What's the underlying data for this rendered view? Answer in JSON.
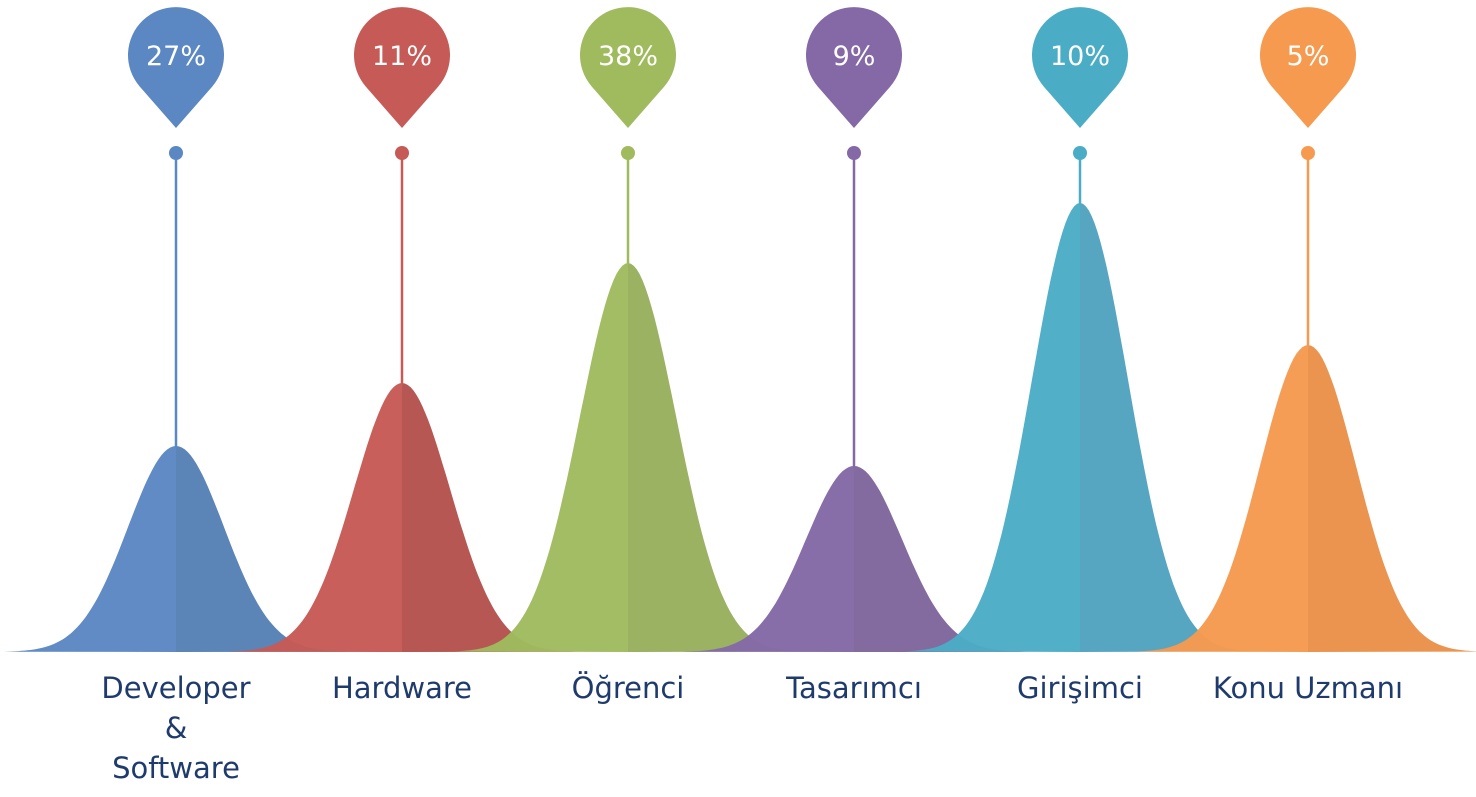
{
  "chart_data": {
    "type": "area",
    "title": "",
    "xlabel": "",
    "ylabel": "",
    "legend": "none",
    "grid": false,
    "categories": [
      "Developer\n&\nSoftware",
      "Hardware",
      "Öğrenci",
      "Tasarımcı",
      "Girişimci",
      "Konu Uzmanı"
    ],
    "values": [
      27,
      11,
      38,
      9,
      10,
      5
    ],
    "value_labels": [
      "27%",
      "11%",
      "38%",
      "9%",
      "10%",
      "5%"
    ],
    "colors": [
      "#5b87c2",
      "#c65a56",
      "#9fbb5e",
      "#8469a6",
      "#4bacc6",
      "#f59a4f"
    ],
    "colors_dark": [
      "#5680b5",
      "#b5524e",
      "#97b05c",
      "#7f669c",
      "#51a3bf",
      "#e99149"
    ]
  }
}
